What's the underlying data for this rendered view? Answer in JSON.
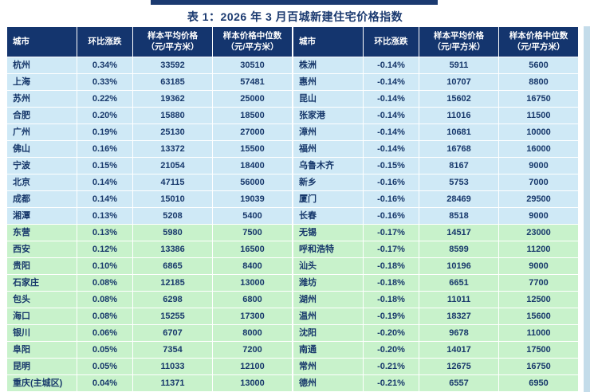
{
  "page": {
    "title": "表 1：2026 年 3 月百城新建住宅价格指数"
  },
  "headers": [
    "城市",
    "环比涨跌",
    "样本平均价格\n（元/平方米）",
    "样本价格中位数\n（元/平方米）"
  ],
  "left_table": {
    "rows": [
      {
        "city": "杭州",
        "change": "0.34%",
        "avg": "33592",
        "median": "30510",
        "group": "blue"
      },
      {
        "city": "上海",
        "change": "0.33%",
        "avg": "63185",
        "median": "57481",
        "group": "blue"
      },
      {
        "city": "苏州",
        "change": "0.22%",
        "avg": "19362",
        "median": "25000",
        "group": "blue"
      },
      {
        "city": "合肥",
        "change": "0.20%",
        "avg": "15880",
        "median": "18500",
        "group": "blue"
      },
      {
        "city": "广州",
        "change": "0.19%",
        "avg": "25130",
        "median": "27000",
        "group": "blue"
      },
      {
        "city": "佛山",
        "change": "0.16%",
        "avg": "13372",
        "median": "15500",
        "group": "blue"
      },
      {
        "city": "宁波",
        "change": "0.15%",
        "avg": "21054",
        "median": "18400",
        "group": "blue"
      },
      {
        "city": "北京",
        "change": "0.14%",
        "avg": "47115",
        "median": "56000",
        "group": "blue"
      },
      {
        "city": "成都",
        "change": "0.14%",
        "avg": "15010",
        "median": "19039",
        "group": "blue"
      },
      {
        "city": "湘潭",
        "change": "0.13%",
        "avg": "5208",
        "median": "5400",
        "group": "blue"
      },
      {
        "city": "东营",
        "change": "0.13%",
        "avg": "5980",
        "median": "7500",
        "group": "green"
      },
      {
        "city": "西安",
        "change": "0.12%",
        "avg": "13386",
        "median": "16500",
        "group": "green"
      },
      {
        "city": "贵阳",
        "change": "0.10%",
        "avg": "6865",
        "median": "8400",
        "group": "green"
      },
      {
        "city": "石家庄",
        "change": "0.08%",
        "avg": "12185",
        "median": "13000",
        "group": "green"
      },
      {
        "city": "包头",
        "change": "0.08%",
        "avg": "6298",
        "median": "6800",
        "group": "green"
      },
      {
        "city": "海口",
        "change": "0.08%",
        "avg": "15255",
        "median": "17300",
        "group": "green"
      },
      {
        "city": "银川",
        "change": "0.06%",
        "avg": "6707",
        "median": "8000",
        "group": "green"
      },
      {
        "city": "阜阳",
        "change": "0.05%",
        "avg": "7354",
        "median": "7200",
        "group": "green"
      },
      {
        "city": "昆明",
        "change": "0.05%",
        "avg": "11033",
        "median": "12100",
        "group": "green"
      },
      {
        "city": "重庆(主城区)",
        "change": "0.04%",
        "avg": "11371",
        "median": "13000",
        "group": "green"
      }
    ]
  },
  "right_table": {
    "rows": [
      {
        "city": "株洲",
        "change": "-0.14%",
        "avg": "5911",
        "median": "5600",
        "group": "blue"
      },
      {
        "city": "惠州",
        "change": "-0.14%",
        "avg": "10707",
        "median": "8800",
        "group": "blue"
      },
      {
        "city": "昆山",
        "change": "-0.14%",
        "avg": "15602",
        "median": "16750",
        "group": "blue"
      },
      {
        "city": "张家港",
        "change": "-0.14%",
        "avg": "11016",
        "median": "11500",
        "group": "blue"
      },
      {
        "city": "漳州",
        "change": "-0.14%",
        "avg": "10681",
        "median": "10000",
        "group": "blue"
      },
      {
        "city": "福州",
        "change": "-0.14%",
        "avg": "16768",
        "median": "16000",
        "group": "blue"
      },
      {
        "city": "乌鲁木齐",
        "change": "-0.15%",
        "avg": "8167",
        "median": "9000",
        "group": "blue"
      },
      {
        "city": "新乡",
        "change": "-0.16%",
        "avg": "5753",
        "median": "7000",
        "group": "blue"
      },
      {
        "city": "厦门",
        "change": "-0.16%",
        "avg": "28469",
        "median": "29500",
        "group": "blue"
      },
      {
        "city": "长春",
        "change": "-0.16%",
        "avg": "8518",
        "median": "9000",
        "group": "blue"
      },
      {
        "city": "无锡",
        "change": "-0.17%",
        "avg": "14517",
        "median": "23000",
        "group": "green"
      },
      {
        "city": "呼和浩特",
        "change": "-0.17%",
        "avg": "8599",
        "median": "11200",
        "group": "green"
      },
      {
        "city": "汕头",
        "change": "-0.18%",
        "avg": "10196",
        "median": "9000",
        "group": "green"
      },
      {
        "city": "潍坊",
        "change": "-0.18%",
        "avg": "6651",
        "median": "7700",
        "group": "green"
      },
      {
        "city": "湖州",
        "change": "-0.18%",
        "avg": "11011",
        "median": "12500",
        "group": "green"
      },
      {
        "city": "温州",
        "change": "-0.19%",
        "avg": "18327",
        "median": "15600",
        "group": "green"
      },
      {
        "city": "沈阳",
        "change": "-0.20%",
        "avg": "9678",
        "median": "11000",
        "group": "green"
      },
      {
        "city": "南通",
        "change": "-0.20%",
        "avg": "14017",
        "median": "17500",
        "group": "green"
      },
      {
        "city": "常州",
        "change": "-0.21%",
        "avg": "12675",
        "median": "16750",
        "group": "green"
      },
      {
        "city": "德州",
        "change": "-0.21%",
        "avg": "6557",
        "median": "6950",
        "group": "green"
      }
    ]
  },
  "colors": {
    "header_bg": "#14356e",
    "row_blue": "#cfe9f6",
    "row_green": "#c8f2cb",
    "title_color": "#1b3a70",
    "cell_text": "#17386b",
    "page_bg": "#c4dcea"
  }
}
